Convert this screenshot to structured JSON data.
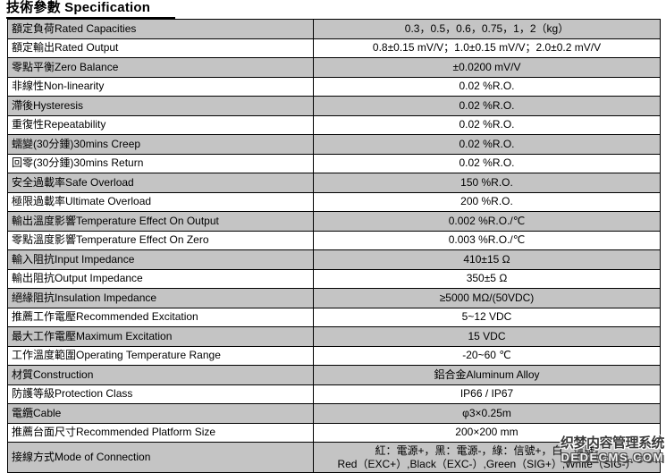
{
  "page": {
    "title": "技術參數 Specification"
  },
  "table": {
    "rows": [
      {
        "label": "額定負荷Rated Capacities",
        "value": "0.3，0.5，0.6，0.75，1，2（kg）"
      },
      {
        "label": "額定輸出Rated Output",
        "value": "0.8±0.15 mV/V；1.0±0.15 mV/V；2.0±0.2 mV/V"
      },
      {
        "label": "零點平衡Zero Balance",
        "value": "±0.0200 mV/V"
      },
      {
        "label": "非線性Non-linearity",
        "value": "0.02 %R.O."
      },
      {
        "label": "滯後Hysteresis",
        "value": "0.02 %R.O."
      },
      {
        "label": "重復性Repeatability",
        "value": "0.02 %R.O."
      },
      {
        "label": "蠕變(30分鍾)30mins Creep",
        "value": "0.02 %R.O."
      },
      {
        "label": "回零(30分鍾)30mins Return",
        "value": "0.02 %R.O."
      },
      {
        "label": "安全過載率Safe Overload",
        "value": "150 %R.O."
      },
      {
        "label": "極限過載率Ultimate Overload",
        "value": "200 %R.O."
      },
      {
        "label": "輸出溫度影響Temperature Effect On Output",
        "value": "0.002 %R.O./℃"
      },
      {
        "label": "零點溫度影響Temperature Effect On Zero",
        "value": "0.003 %R.O./℃"
      },
      {
        "label": "輸入阻抗Input Impedance",
        "value": "410±15 Ω"
      },
      {
        "label": "輸出阻抗Output Impedance",
        "value": "350±5 Ω"
      },
      {
        "label": "絕緣阻抗Insulation Impedance",
        "value": "≥5000 MΩ/(50VDC)"
      },
      {
        "label": "推薦工作電壓Recommended Excitation",
        "value": "5~12 VDC"
      },
      {
        "label": "最大工作電壓Maximum Excitation",
        "value": "15 VDC"
      },
      {
        "label": "工作溫度範圍Operating Temperature Range",
        "value": "-20~60 ℃"
      },
      {
        "label": "材質Construction",
        "value": "鋁合金Aluminum Alloy"
      },
      {
        "label": "防護等級Protection Class",
        "value": "IP66 / IP67"
      },
      {
        "label": "電纜Cable",
        "value": "φ3×0.25m"
      },
      {
        "label": "推薦台面尺寸Recommended Platform Size",
        "value": "200×200 mm"
      },
      {
        "label": "接線方式Mode of Connection",
        "value_lines": [
          "紅：電源+，黑：電源-，綠：信號+，白：信號-",
          "Red（EXC+）,Black（EXC-）,Green（SIG+）,White（SIG-）"
        ]
      }
    ]
  },
  "watermark": {
    "line1": "织梦内容管理系统",
    "line2": "DEDECMS.COM"
  },
  "colors": {
    "row_alt_bg": "#c4c4c4",
    "border": "#000000",
    "background": "#ffffff",
    "watermark_dark": "#3a3a3a"
  }
}
